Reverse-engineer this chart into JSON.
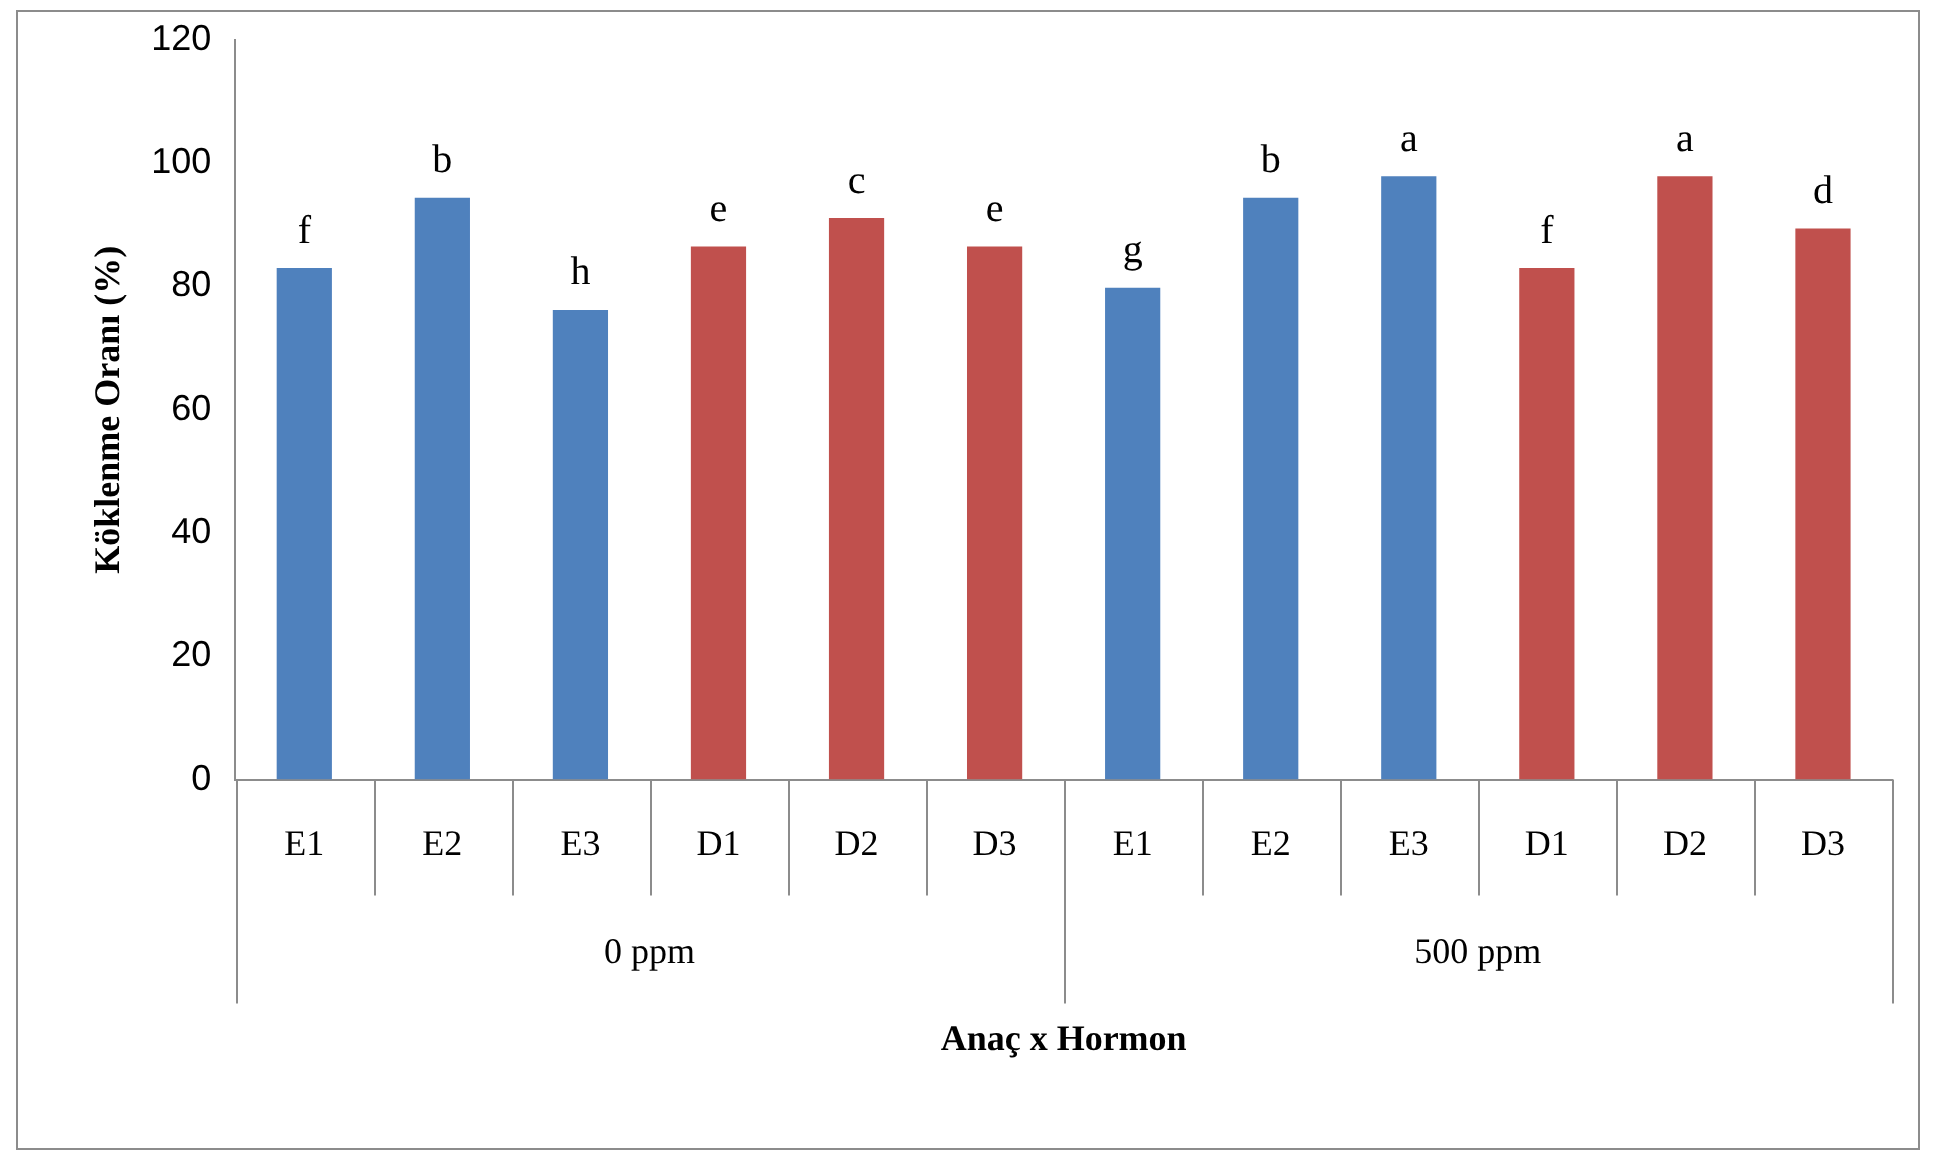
{
  "chart_data": {
    "type": "bar",
    "xlabel": "Anaç x Hormon",
    "ylabel": "Köklenme Oranı (%)",
    "categories": [
      "E1",
      "E2",
      "E3",
      "D1",
      "D2",
      "D3",
      "E1",
      "E2",
      "E3",
      "D1",
      "D2",
      "D3"
    ],
    "values": [
      83.0,
      94.4,
      76.2,
      86.5,
      91.1,
      86.5,
      79.8,
      94.4,
      97.9,
      83.0,
      97.9,
      89.4
    ],
    "value_labels": [
      "f",
      "b",
      "h",
      "e",
      "c",
      "e",
      "g",
      "b",
      "a",
      "f",
      "a",
      "d"
    ],
    "colors": [
      "#4f81bd",
      "#4f81bd",
      "#4f81bd",
      "#c0504d",
      "#c0504d",
      "#c0504d",
      "#4f81bd",
      "#4f81bd",
      "#4f81bd",
      "#c0504d",
      "#c0504d",
      "#c0504d"
    ],
    "annotations": [
      "0 ppm",
      "500 ppm"
    ],
    "ylim": [
      0,
      120
    ],
    "yticks": [
      0,
      20,
      40,
      60,
      80,
      100,
      120
    ],
    "grid": false,
    "legend": false
  }
}
